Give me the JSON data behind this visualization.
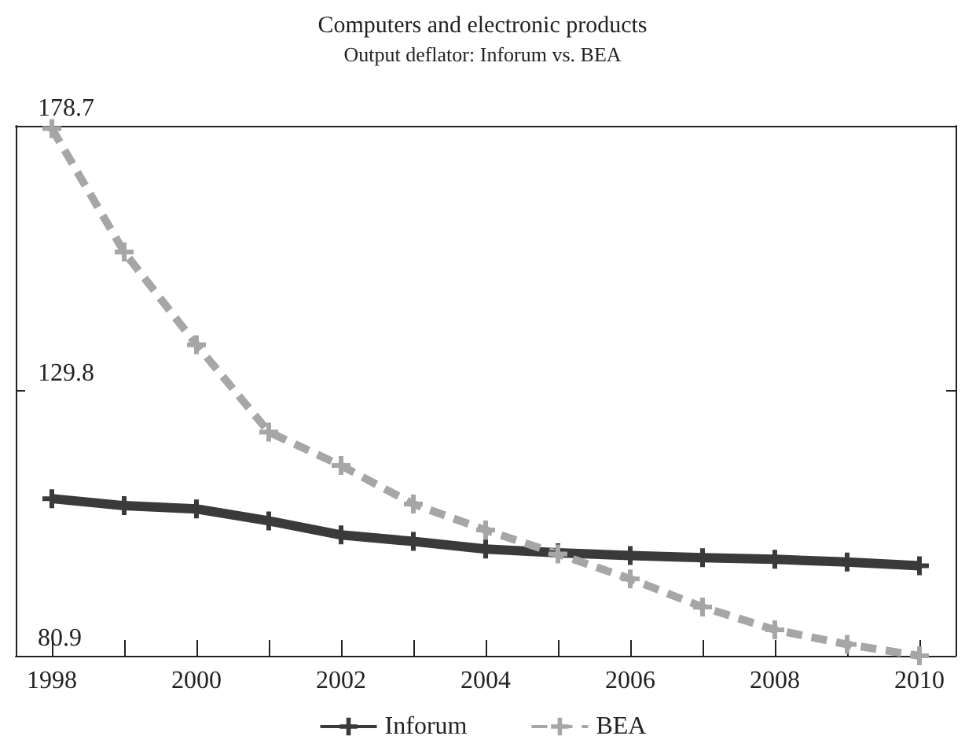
{
  "chart_data": {
    "type": "line",
    "title": "Computers and electronic products",
    "subtitle": "Output deflator: Inforum vs. BEA",
    "x": [
      1998,
      1999,
      2000,
      2001,
      2002,
      2003,
      2004,
      2005,
      2006,
      2007,
      2008,
      2009,
      2010
    ],
    "series": [
      {
        "name": "Inforum",
        "color": "#3a3a3a",
        "line_style": "solid",
        "values": [
          109.9,
          108.6,
          108.0,
          105.8,
          103.2,
          102.0,
          100.6,
          99.9,
          99.4,
          99.0,
          98.7,
          98.2,
          97.5
        ]
      },
      {
        "name": "BEA",
        "color": "#a6a6a8",
        "line_style": "dashed",
        "values": [
          178.2,
          155.4,
          138.3,
          122.2,
          116.0,
          108.9,
          104.1,
          99.7,
          95.1,
          89.9,
          85.7,
          83.0,
          80.9
        ]
      }
    ],
    "xlim": [
      1997.5,
      2010.5
    ],
    "xticks": [
      1998,
      {
        "value": 1999,
        "label": null
      },
      2000,
      {
        "value": 2001,
        "label": null
      },
      2002,
      {
        "value": 2003,
        "label": null
      },
      2004,
      {
        "value": 2005,
        "label": null
      },
      2006,
      {
        "value": 2007,
        "label": null
      },
      2008,
      {
        "value": 2009,
        "label": null
      },
      2010
    ],
    "ylim": [
      80.9,
      178.7
    ],
    "yticks": [
      80.9,
      129.8,
      178.7
    ],
    "marker": "cross",
    "grid": false,
    "legend": "bottom"
  }
}
